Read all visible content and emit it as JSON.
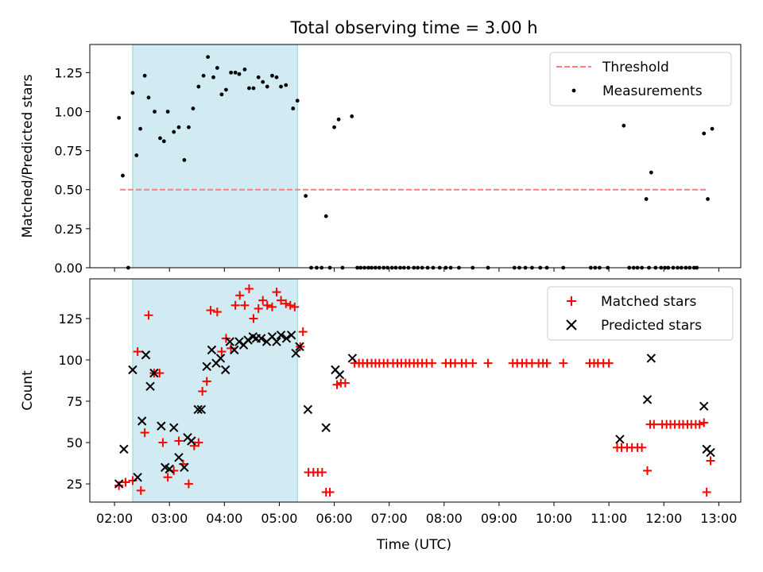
{
  "figure": {
    "title": "Total observing time = 3.00 h",
    "xlabel": "Time (UTC)",
    "xticks": [
      "02:00",
      "03:00",
      "04:00",
      "05:00",
      "06:00",
      "07:00",
      "08:00",
      "09:00",
      "10:00",
      "11:00",
      "12:00",
      "13:00"
    ],
    "shaded_span": {
      "start_h": 2.33,
      "end_h": 5.33,
      "color": "#add8e6"
    }
  },
  "chart_data": [
    {
      "type": "scatter",
      "ylabel": "Matched/Predicted stars",
      "xlim": [
        1.55,
        13.4
      ],
      "ylim": [
        0,
        1.43
      ],
      "yticks": [
        "0.00",
        "0.25",
        "0.50",
        "0.75",
        "1.00",
        "1.25"
      ],
      "legend": "top-right",
      "threshold": {
        "name": "Threshold",
        "value": 0.5,
        "x_range": [
          2.1,
          12.8
        ],
        "color": "#ff7f7f"
      },
      "series": [
        {
          "name": "Measurements",
          "color": "#000000",
          "x": [
            2.08,
            2.15,
            2.25,
            2.33,
            2.4,
            2.47,
            2.55,
            2.62,
            2.73,
            2.83,
            2.9,
            2.97,
            3.08,
            3.17,
            3.27,
            3.35,
            3.43,
            3.53,
            3.62,
            3.7,
            3.8,
            3.87,
            3.95,
            4.03,
            4.12,
            4.2,
            4.27,
            4.37,
            4.45,
            4.53,
            4.62,
            4.7,
            4.78,
            4.87,
            4.95,
            5.03,
            5.12,
            5.25,
            5.33,
            5.48,
            5.58,
            5.68,
            5.77,
            5.85,
            5.92,
            6.0,
            6.08,
            6.15,
            6.32,
            6.42,
            6.48,
            6.55,
            6.62,
            6.68,
            6.75,
            6.82,
            6.9,
            6.97,
            7.05,
            7.12,
            7.2,
            7.27,
            7.35,
            7.45,
            7.52,
            7.6,
            7.7,
            7.8,
            7.92,
            8.03,
            8.12,
            8.27,
            8.52,
            8.8,
            9.28,
            9.37,
            9.48,
            9.6,
            9.75,
            9.87,
            10.17,
            10.67,
            10.75,
            10.83,
            10.98,
            11.27,
            11.37,
            11.45,
            11.52,
            11.6,
            11.68,
            11.73,
            11.77,
            11.85,
            11.95,
            12.02,
            12.08,
            12.17,
            12.25,
            12.32,
            12.4,
            12.47,
            12.55,
            12.6,
            12.73,
            12.8,
            12.88
          ],
          "y": [
            0.96,
            0.59,
            0.0,
            1.12,
            0.72,
            0.89,
            1.23,
            1.09,
            1.0,
            0.83,
            0.81,
            1.0,
            0.87,
            0.9,
            0.69,
            0.9,
            1.02,
            1.16,
            1.23,
            1.35,
            1.22,
            1.28,
            1.11,
            1.14,
            1.25,
            1.25,
            1.24,
            1.27,
            1.15,
            1.15,
            1.22,
            1.19,
            1.16,
            1.23,
            1.22,
            1.16,
            1.17,
            1.02,
            1.07,
            0.46,
            0.0,
            0.0,
            0.0,
            0.33,
            0.0,
            0.9,
            0.95,
            0.0,
            0.97,
            0.0,
            0.0,
            0.0,
            0.0,
            0.0,
            0.0,
            0.0,
            0.0,
            0.0,
            0.0,
            0.0,
            0.0,
            0.0,
            0.0,
            0.0,
            0.0,
            0.0,
            0.0,
            0.0,
            0.0,
            0.0,
            0.0,
            0.0,
            0.0,
            0.0,
            0.0,
            0.0,
            0.0,
            0.0,
            0.0,
            0.0,
            0.0,
            0.0,
            0.0,
            0.0,
            0.0,
            0.91,
            0.0,
            0.0,
            0.0,
            0.0,
            0.44,
            0.0,
            0.61,
            0.0,
            0.0,
            0.0,
            0.0,
            0.0,
            0.0,
            0.0,
            0.0,
            0.0,
            0.0,
            0.0,
            0.86,
            0.44,
            0.89
          ]
        }
      ]
    },
    {
      "type": "scatter",
      "ylabel": "Count",
      "xlim": [
        1.55,
        13.4
      ],
      "ylim": [
        14,
        149
      ],
      "yticks": [
        "25",
        "50",
        "75",
        "100",
        "125"
      ],
      "legend": "top-right",
      "series": [
        {
          "name": "Matched stars",
          "marker": "+",
          "color": "#ff0000",
          "x": [
            2.08,
            2.2,
            2.33,
            2.42,
            2.48,
            2.55,
            2.62,
            2.72,
            2.82,
            2.88,
            2.97,
            3.08,
            3.17,
            3.25,
            3.35,
            3.45,
            3.53,
            3.6,
            3.68,
            3.75,
            3.87,
            3.95,
            4.03,
            4.12,
            4.2,
            4.28,
            4.37,
            4.45,
            4.53,
            4.62,
            4.7,
            4.78,
            4.87,
            4.95,
            5.03,
            5.12,
            5.2,
            5.28,
            5.38,
            5.43,
            5.53,
            5.62,
            5.7,
            5.78,
            5.85,
            5.92,
            6.05,
            6.12,
            6.2,
            6.37,
            6.45,
            6.52,
            6.6,
            6.68,
            6.75,
            6.82,
            6.9,
            6.97,
            7.07,
            7.15,
            7.22,
            7.3,
            7.37,
            7.45,
            7.52,
            7.6,
            7.68,
            7.78,
            8.03,
            8.12,
            8.2,
            8.32,
            8.4,
            8.52,
            8.8,
            9.25,
            9.33,
            9.42,
            9.5,
            9.6,
            9.72,
            9.8,
            9.87,
            10.17,
            10.65,
            10.73,
            10.8,
            10.9,
            11.0,
            11.15,
            11.23,
            11.33,
            11.42,
            11.52,
            11.6,
            11.7,
            11.75,
            11.82,
            11.97,
            12.05,
            12.12,
            12.2,
            12.28,
            12.35,
            12.43,
            12.5,
            12.58,
            12.65,
            12.73,
            12.78,
            12.85
          ],
          "y": [
            24,
            26,
            27,
            105,
            21,
            56,
            127,
            92,
            92,
            50,
            29,
            33,
            51,
            37,
            25,
            48,
            50,
            81,
            87,
            130,
            129,
            105,
            113,
            107,
            133,
            139,
            133,
            143,
            125,
            131,
            136,
            133,
            132,
            141,
            136,
            134,
            133,
            132,
            108,
            117,
            32,
            32,
            32,
            32,
            20,
            20,
            85,
            86,
            86,
            98,
            98,
            98,
            98,
            98,
            98,
            98,
            98,
            98,
            98,
            98,
            98,
            98,
            98,
            98,
            98,
            98,
            98,
            98,
            98,
            98,
            98,
            98,
            98,
            98,
            98,
            98,
            98,
            98,
            98,
            98,
            98,
            98,
            98,
            98,
            98,
            98,
            98,
            98,
            98,
            47,
            47,
            47,
            47,
            47,
            47,
            33,
            61,
            61,
            61,
            61,
            61,
            61,
            61,
            61,
            61,
            61,
            61,
            61,
            62,
            20,
            39
          ]
        },
        {
          "name": "Predicted stars",
          "marker": "x",
          "color": "#000000",
          "x": [
            2.08,
            2.17,
            2.33,
            2.42,
            2.5,
            2.57,
            2.65,
            2.72,
            2.85,
            2.92,
            3.0,
            3.08,
            3.17,
            3.27,
            3.33,
            3.4,
            3.52,
            3.58,
            3.68,
            3.77,
            3.85,
            3.93,
            4.02,
            4.1,
            4.18,
            4.27,
            4.35,
            4.43,
            4.52,
            4.58,
            4.67,
            4.77,
            4.87,
            4.95,
            5.03,
            5.13,
            5.22,
            5.3,
            5.37,
            5.52,
            5.85,
            6.02,
            6.1,
            6.33,
            11.2,
            11.7,
            11.77,
            12.73,
            12.78,
            12.85
          ],
          "y": [
            25,
            46,
            94,
            29,
            63,
            103,
            84,
            92,
            60,
            35,
            34,
            59,
            41,
            35,
            53,
            51,
            70,
            70,
            96,
            106,
            98,
            101,
            94,
            111,
            106,
            111,
            109,
            112,
            114,
            113,
            113,
            111,
            114,
            111,
            115,
            113,
            115,
            104,
            108,
            70,
            59,
            94,
            91,
            101,
            52,
            76,
            101,
            72,
            46,
            44
          ]
        }
      ]
    }
  ]
}
